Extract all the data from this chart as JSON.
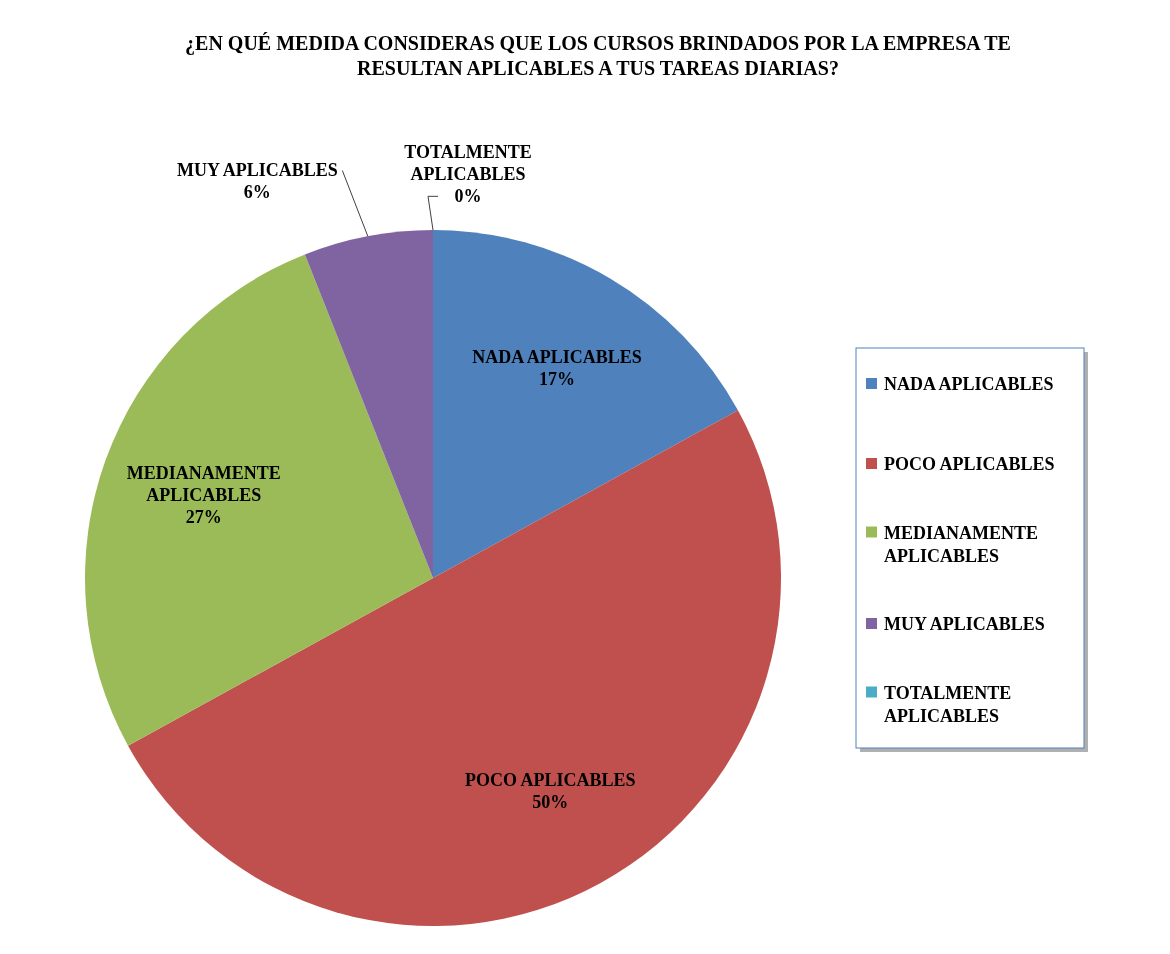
{
  "chart_data": {
    "type": "pie",
    "title": "¿EN QUÉ MEDIDA CONSIDERAS QUE LOS CURSOS BRINDADOS POR LA EMPRESA TE RESULTAN APLICABLES A TUS TAREAS DIARIAS?",
    "categories": [
      "NADA APLICABLES",
      "POCO APLICABLES",
      "MEDIANAMENTE APLICABLES",
      "MUY APLICABLES",
      "TOTALMENTE APLICABLES"
    ],
    "values": [
      17,
      50,
      27,
      6,
      0
    ],
    "colors": [
      "#4f81bd",
      "#c0504d",
      "#9bbb59",
      "#8064a2",
      "#4bacc6"
    ],
    "value_labels": [
      "17%",
      "50%",
      "27%",
      "6%",
      "0%"
    ],
    "legend": "right"
  }
}
